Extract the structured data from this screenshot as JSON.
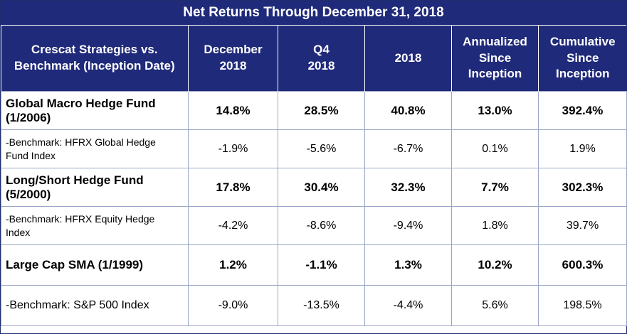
{
  "title": "Net Returns Through December 31, 2018",
  "headers": [
    [
      "Crescat Strategies vs.",
      "Benchmark (Inception Date)"
    ],
    [
      "December",
      "2018"
    ],
    [
      "Q4",
      "2018"
    ],
    [
      "2018"
    ],
    [
      "Annualized",
      "Since",
      "Inception"
    ],
    [
      "Cumulative",
      "Since",
      "Inception"
    ]
  ],
  "rows": [
    {
      "label": [
        "Global Macro Hedge Fund",
        "(1/2006)"
      ],
      "values": [
        "14.8%",
        "28.5%",
        "40.8%",
        "13.0%",
        "392.4%"
      ]
    },
    {
      "label": [
        "-Benchmark: HFRX Global Hedge",
        "Fund Index"
      ],
      "values": [
        "-1.9%",
        "-5.6%",
        "-6.7%",
        "0.1%",
        "1.9%"
      ]
    },
    {
      "label": [
        "Long/Short Hedge Fund",
        "(5/2000)"
      ],
      "values": [
        "17.8%",
        "30.4%",
        "32.3%",
        "7.7%",
        "302.3%"
      ]
    },
    {
      "label": [
        "-Benchmark: HFRX Equity Hedge",
        "Index"
      ],
      "values": [
        "-4.2%",
        "-8.6%",
        "-9.4%",
        "1.8%",
        "39.7%"
      ]
    },
    {
      "label": [
        "Large Cap SMA (1/1999)"
      ],
      "values": [
        "1.2%",
        "-1.1%",
        "1.3%",
        "10.2%",
        "600.3%"
      ]
    },
    {
      "label": [
        "-Benchmark: S&P 500 Index"
      ],
      "values": [
        "-9.0%",
        "-13.5%",
        "-4.4%",
        "5.6%",
        "198.5%"
      ]
    }
  ]
}
